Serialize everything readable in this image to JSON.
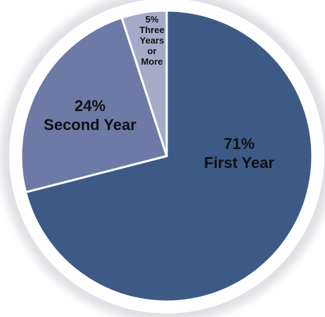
{
  "chart_data": {
    "type": "pie",
    "title": "",
    "start_angle_deg": 0,
    "direction": "clockwise",
    "slices": [
      {
        "label_lines": [
          "71%",
          "First Year"
        ],
        "value": 71,
        "color": "#3d5a86"
      },
      {
        "label_lines": [
          "24%",
          "Second Year"
        ],
        "value": 24,
        "color": "#6c7aa5"
      },
      {
        "label_lines": [
          "5%",
          "Three",
          "Years",
          "or",
          "More"
        ],
        "value": 5,
        "color": "#a4abc9"
      }
    ],
    "separator_color": "#ffffff",
    "background_disc_color": "#e4e5e8",
    "legend": "none"
  }
}
